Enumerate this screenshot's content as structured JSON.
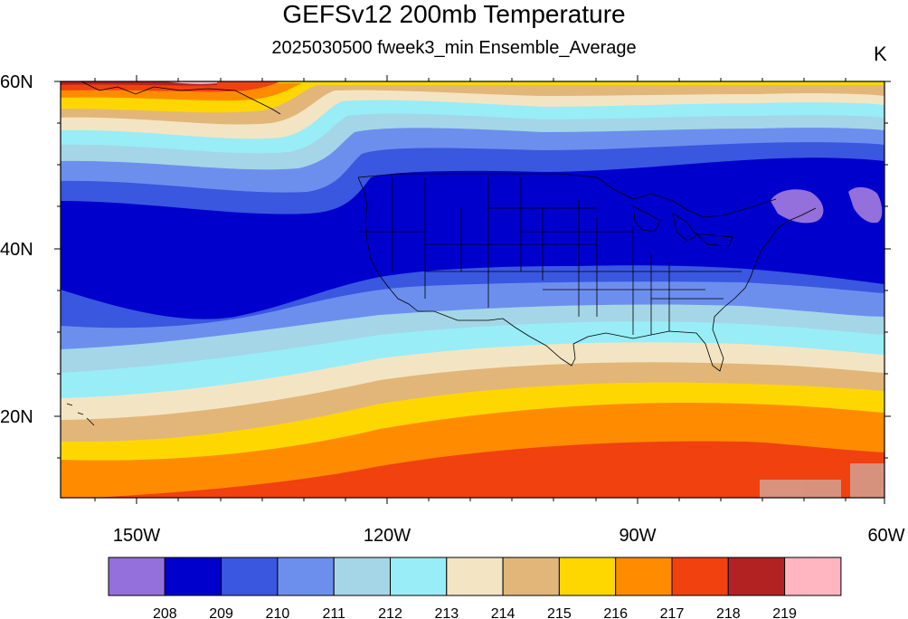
{
  "title": "GEFSv12 200mb Temperature",
  "subtitle": "2025030500 fweek3_min Ensemble_Average",
  "units": "K",
  "lat_labels": [
    "60N",
    "40N",
    "20N"
  ],
  "lon_labels": [
    "150W",
    "120W",
    "90W",
    "60W"
  ],
  "colorbar": {
    "colors": [
      "#9370db",
      "#0000cd",
      "#3a57e0",
      "#6c8fee",
      "#a4d6e7",
      "#98edf7",
      "#f3e5c3",
      "#e2b679",
      "#ffd700",
      "#ff8c00",
      "#f0410f",
      "#b22222",
      "#ffb6c1"
    ],
    "labels": [
      "208",
      "209",
      "210",
      "211",
      "212",
      "213",
      "214",
      "215",
      "216",
      "217",
      "218",
      "219"
    ]
  }
}
